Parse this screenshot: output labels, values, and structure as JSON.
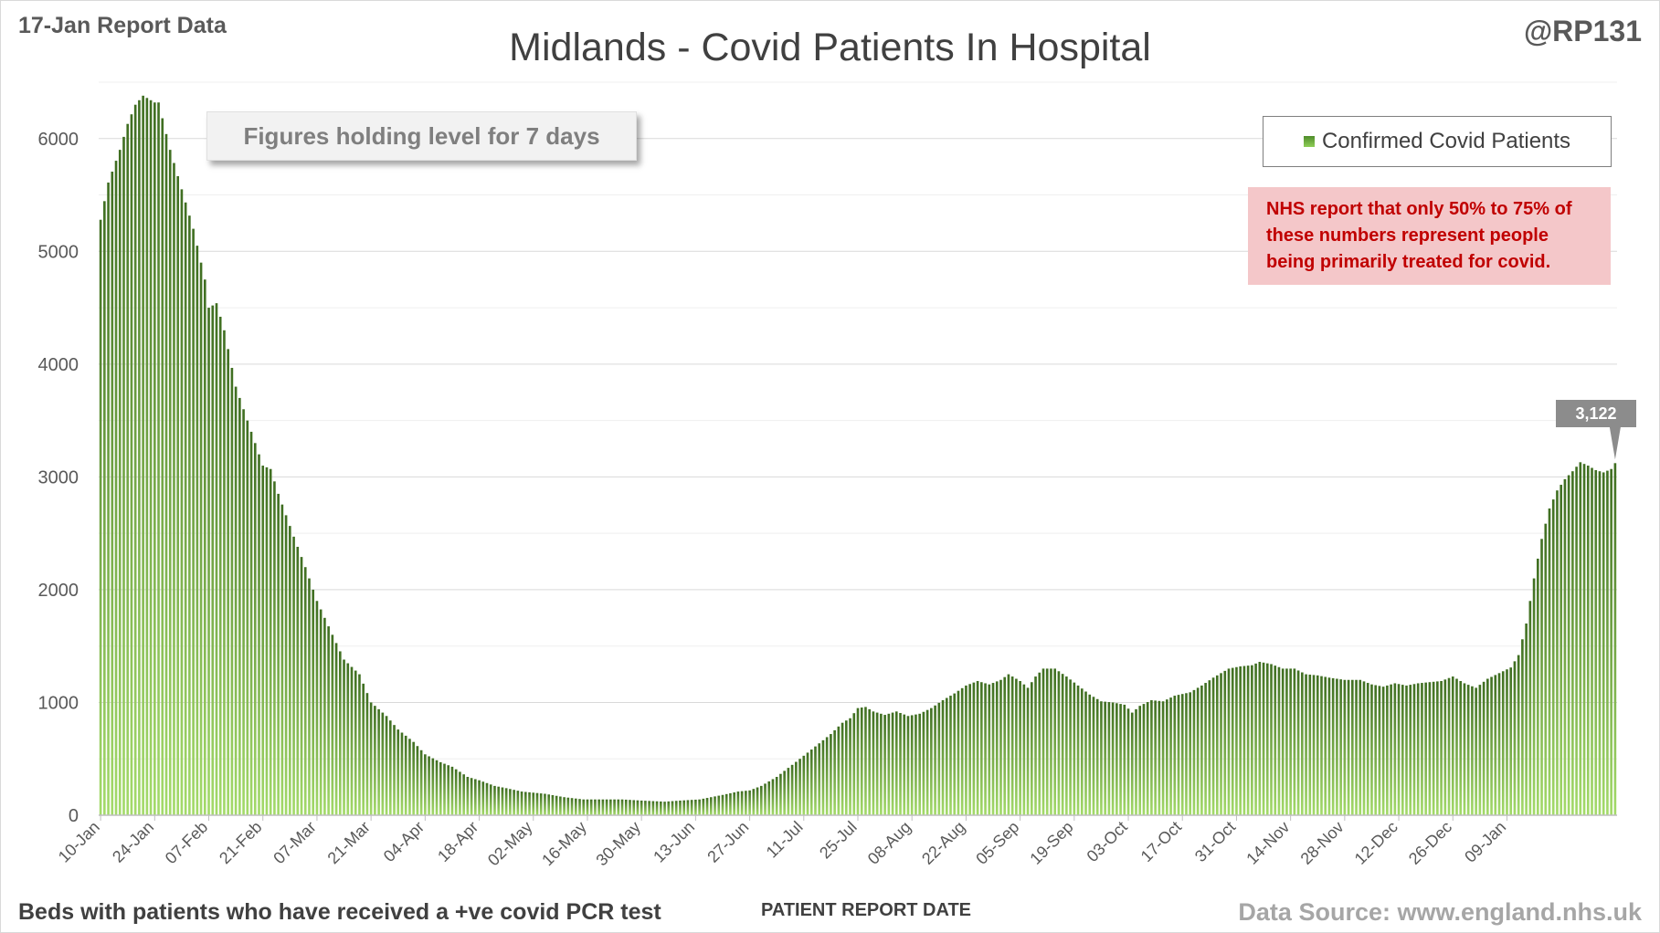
{
  "header": {
    "report_date": "17-Jan Report Data",
    "handle": "@RP131",
    "title": "Midlands - Covid Patients In Hospital"
  },
  "annotations": {
    "holding_level": "Figures holding level for 7 days",
    "note_lines": [
      "NHS report that only 50% to 75% of",
      "these numbers represent people",
      "being primarily treated for covid."
    ],
    "latest_callout": "3,122"
  },
  "footer": {
    "subtitle": "Beds with patients who have received a +ve covid PCR test",
    "xlabel": "PATIENT REPORT DATE",
    "source": "Data Source: www.england.nhs.uk"
  },
  "colors": {
    "bar_top": "#3f6e21",
    "bar_bottom": "#a4db6a",
    "callout": "#8c8c8c",
    "note_text": "#c00000",
    "note_bg": "#f4c7c9"
  },
  "chart_data": {
    "type": "bar",
    "series_name": "Confirmed Covid Patients",
    "ylim": [
      0,
      6500
    ],
    "yticks": [
      0,
      1000,
      2000,
      3000,
      4000,
      5000,
      6000
    ],
    "grid": true,
    "legend_position": "top-right",
    "x_start": "10-Jan",
    "x_tick_labels": [
      "10-Jan",
      "24-Jan",
      "07-Feb",
      "21-Feb",
      "07-Mar",
      "21-Mar",
      "04-Apr",
      "18-Apr",
      "02-May",
      "16-May",
      "30-May",
      "13-Jun",
      "27-Jun",
      "11-Jul",
      "25-Jul",
      "08-Aug",
      "22-Aug",
      "05-Sep",
      "19-Sep",
      "03-Oct",
      "17-Oct",
      "31-Oct",
      "14-Nov",
      "28-Nov",
      "12-Dec",
      "26-Dec",
      "09-Jan"
    ],
    "anchors": [
      [
        0,
        5280
      ],
      [
        2,
        5610
      ],
      [
        5,
        5900
      ],
      [
        7,
        6130
      ],
      [
        9,
        6300
      ],
      [
        11,
        6380
      ],
      [
        14,
        6320
      ],
      [
        15,
        6320
      ],
      [
        18,
        5900
      ],
      [
        21,
        5550
      ],
      [
        24,
        5200
      ],
      [
        27,
        4750
      ],
      [
        28,
        4500
      ],
      [
        30,
        4540
      ],
      [
        32,
        4300
      ],
      [
        35,
        3800
      ],
      [
        38,
        3500
      ],
      [
        42,
        3100
      ],
      [
        44,
        3070
      ],
      [
        46,
        2850
      ],
      [
        50,
        2470
      ],
      [
        53,
        2200
      ],
      [
        56,
        1900
      ],
      [
        60,
        1600
      ],
      [
        63,
        1380
      ],
      [
        67,
        1250
      ],
      [
        70,
        1000
      ],
      [
        74,
        880
      ],
      [
        77,
        760
      ],
      [
        81,
        650
      ],
      [
        84,
        540
      ],
      [
        88,
        470
      ],
      [
        91,
        430
      ],
      [
        95,
        340
      ],
      [
        98,
        310
      ],
      [
        102,
        260
      ],
      [
        105,
        240
      ],
      [
        109,
        210
      ],
      [
        115,
        190
      ],
      [
        120,
        160
      ],
      [
        125,
        140
      ],
      [
        130,
        140
      ],
      [
        135,
        140
      ],
      [
        140,
        130
      ],
      [
        146,
        120
      ],
      [
        150,
        130
      ],
      [
        155,
        140
      ],
      [
        158,
        160
      ],
      [
        161,
        180
      ],
      [
        165,
        210
      ],
      [
        168,
        220
      ],
      [
        171,
        260
      ],
      [
        175,
        340
      ],
      [
        178,
        420
      ],
      [
        181,
        500
      ],
      [
        185,
        610
      ],
      [
        189,
        720
      ],
      [
        192,
        820
      ],
      [
        194,
        860
      ],
      [
        196,
        950
      ],
      [
        198,
        960
      ],
      [
        200,
        920
      ],
      [
        203,
        890
      ],
      [
        206,
        920
      ],
      [
        209,
        880
      ],
      [
        212,
        900
      ],
      [
        215,
        950
      ],
      [
        218,
        1020
      ],
      [
        221,
        1080
      ],
      [
        224,
        1150
      ],
      [
        227,
        1190
      ],
      [
        230,
        1160
      ],
      [
        233,
        1200
      ],
      [
        235,
        1250
      ],
      [
        238,
        1190
      ],
      [
        240,
        1130
      ],
      [
        242,
        1230
      ],
      [
        244,
        1300
      ],
      [
        247,
        1300
      ],
      [
        250,
        1230
      ],
      [
        253,
        1150
      ],
      [
        256,
        1070
      ],
      [
        259,
        1010
      ],
      [
        262,
        1000
      ],
      [
        265,
        980
      ],
      [
        267,
        910
      ],
      [
        269,
        970
      ],
      [
        272,
        1020
      ],
      [
        275,
        1010
      ],
      [
        278,
        1060
      ],
      [
        282,
        1090
      ],
      [
        285,
        1150
      ],
      [
        288,
        1220
      ],
      [
        292,
        1300
      ],
      [
        295,
        1320
      ],
      [
        298,
        1330
      ],
      [
        300,
        1360
      ],
      [
        303,
        1340
      ],
      [
        306,
        1300
      ],
      [
        309,
        1300
      ],
      [
        312,
        1250
      ],
      [
        315,
        1240
      ],
      [
        318,
        1220
      ],
      [
        322,
        1200
      ],
      [
        326,
        1200
      ],
      [
        329,
        1160
      ],
      [
        332,
        1140
      ],
      [
        335,
        1170
      ],
      [
        338,
        1150
      ],
      [
        341,
        1170
      ],
      [
        344,
        1180
      ],
      [
        347,
        1190
      ],
      [
        350,
        1230
      ],
      [
        353,
        1170
      ],
      [
        356,
        1130
      ],
      [
        359,
        1210
      ],
      [
        362,
        1260
      ],
      [
        365,
        1310
      ],
      [
        367,
        1420
      ],
      [
        369,
        1700
      ],
      [
        371,
        2100
      ],
      [
        373,
        2450
      ],
      [
        375,
        2720
      ],
      [
        377,
        2880
      ],
      [
        379,
        2980
      ],
      [
        381,
        3050
      ],
      [
        383,
        3130
      ],
      [
        385,
        3100
      ],
      [
        387,
        3060
      ],
      [
        389,
        3040
      ],
      [
        391,
        3070
      ],
      [
        392,
        3122
      ]
    ]
  }
}
